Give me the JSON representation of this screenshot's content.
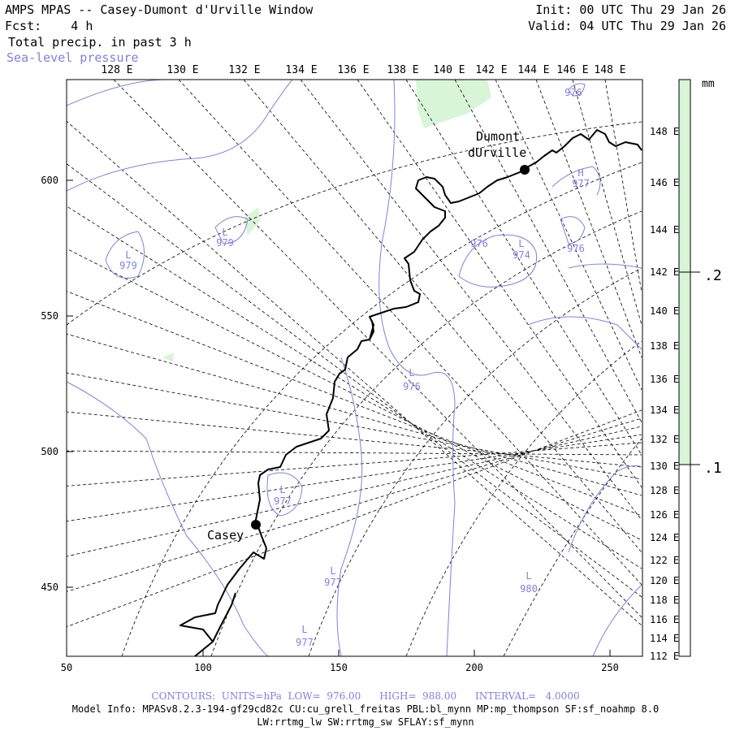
{
  "header": {
    "title": "AMPS MPAS -- Casey-Dumont d'Urville Window",
    "fcst_label": "Fcst:",
    "fcst_value": "4 h",
    "field": "Total precip. in past 3 h",
    "overlay": "Sea-level pressure",
    "init": "Init: 00 UTC Thu 29 Jan 26",
    "valid": "Valid: 04 UTC Thu 29 Jan 26"
  },
  "map": {
    "top_lon_labels": [
      "128 E",
      "130 E",
      "132 E",
      "134 E",
      "136 E",
      "138 E",
      "140 E",
      "142 E",
      "144 E",
      "146 E",
      "148 E"
    ],
    "right_lon_labels": [
      "148 E",
      "146 E",
      "144 E",
      "142 E",
      "140 E",
      "138 E",
      "136 E",
      "134 E",
      "132 E",
      "130 E",
      "128 E",
      "126 E",
      "124 E",
      "122 E",
      "120 E",
      "118 E",
      "116 E",
      "114 E",
      "112 E"
    ],
    "left_grid_labels": [
      "600",
      "550",
      "500",
      "450"
    ],
    "bottom_grid_labels": [
      "50",
      "100",
      "150",
      "200",
      "250"
    ],
    "stations": [
      {
        "name": "Casey"
      },
      {
        "name_line1": "Dumont",
        "name_line2": "dUrville"
      }
    ],
    "pressure_labels": [
      {
        "letter": "L",
        "value": "979"
      },
      {
        "letter": "L",
        "value": "979"
      },
      {
        "letter": "",
        "value": "976"
      },
      {
        "letter": "H",
        "value": "977"
      },
      {
        "letter": "",
        "value": "976"
      },
      {
        "letter": "L",
        "value": "974"
      },
      {
        "letter": "",
        "value": "976"
      },
      {
        "letter": "L",
        "value": "976"
      },
      {
        "letter": "L",
        "value": "977"
      },
      {
        "letter": "L",
        "value": "977"
      },
      {
        "letter": "L",
        "value": "980"
      },
      {
        "letter": "L",
        "value": "977"
      }
    ],
    "colors": {
      "precip": "#d8f5d8",
      "slp": "#8080e0",
      "coast": "#000000",
      "grid": "#000000"
    }
  },
  "colorbar": {
    "unit": "mm",
    "levels": [
      ".2",
      ".1"
    ],
    "color": "#d8f5d8"
  },
  "footer": {
    "contours": "CONTOURS:  UNITS=hPa  LOW=  976.00      HIGH=  988.00      INTERVAL=   4.0000",
    "model_info": "Model Info: MPASv8.2.3-194-gf29cd82c CU:cu_grell_freitas PBL:bl_mynn MP:mp_thompson SF:sf_noahmp 8.0",
    "model_info2": "LW:rrtmg_lw SW:rrtmg_sw SFLAY:sf_mynn"
  }
}
